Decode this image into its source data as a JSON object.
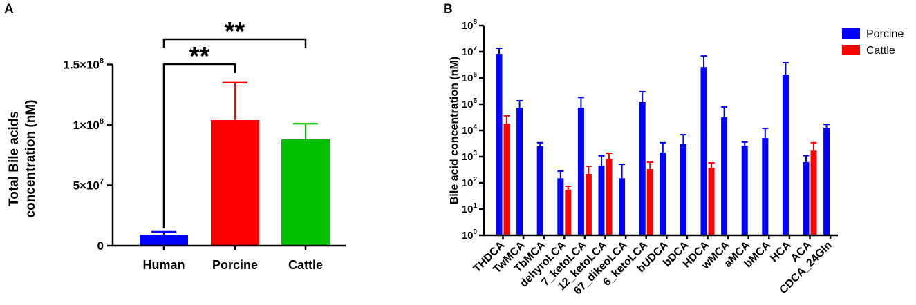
{
  "chart_data": [
    {
      "label": "A",
      "type": "bar",
      "yscale": "linear",
      "categories": [
        "Human",
        "Porcine",
        "Cattle"
      ],
      "values": [
        9000000,
        104000000,
        88000000
      ],
      "error_upper": [
        11500000,
        135000000,
        101000000
      ],
      "colors": [
        "#0000ff",
        "#ff0000",
        "#00c000"
      ],
      "ylabel": [
        "Total Bile acids",
        "concentration (nM)"
      ],
      "ylim": [
        0,
        150000000
      ],
      "yticks": [
        {
          "value": 0,
          "base": "0",
          "exp": ""
        },
        {
          "value": 50000000,
          "base": "5×10",
          "exp": "7"
        },
        {
          "value": 100000000,
          "base": "1×10",
          "exp": "8"
        },
        {
          "value": 150000000,
          "base": "1.5×10",
          "exp": "8"
        }
      ],
      "significance": [
        {
          "from": 0,
          "to": 1,
          "label": "**"
        },
        {
          "from": 0,
          "to": 2,
          "label": "**"
        }
      ]
    },
    {
      "label": "B",
      "type": "bar",
      "yscale": "log",
      "categories": [
        "THDCA",
        "TwMCA",
        "TbMCA",
        "dehyroLCA",
        "7_ketoLCA",
        "12_ketoLCA",
        "67_dikeoLCA",
        "6_ketoLCA",
        "bUDCA",
        "bDCA",
        "HDCA",
        "wMCA",
        "aMCA",
        "bMCA",
        "HCA",
        "ACA",
        "CDCA_24Gln"
      ],
      "series": [
        {
          "name": "Porcine",
          "color": "#0000ff",
          "values": [
            8300000,
            74000,
            2500,
            150,
            74000,
            460,
            150,
            120000,
            1450,
            3000,
            2600000,
            32000,
            2600,
            5100,
            1350000,
            620,
            12700
          ],
          "error_upper": [
            13500000,
            135000,
            3400,
            280,
            180000,
            1070,
            510,
            300000,
            3400,
            6900,
            6900000,
            78000,
            3600,
            12000,
            3800000,
            1100,
            17000
          ]
        },
        {
          "name": "Cattle",
          "color": "#ff0000",
          "values": [
            18000,
            null,
            null,
            55,
            220,
            830,
            null,
            335,
            null,
            null,
            380,
            null,
            null,
            null,
            null,
            1700,
            null
          ],
          "error_upper": [
            36000,
            null,
            null,
            74,
            430,
            1350,
            null,
            615,
            null,
            null,
            580,
            null,
            null,
            null,
            null,
            3400,
            null
          ]
        }
      ],
      "ylabel": "Bile acid concentration (nM)",
      "ylim": [
        1,
        100000000
      ],
      "yticks": [
        {
          "value": 1,
          "base": "10",
          "exp": "0"
        },
        {
          "value": 10,
          "base": "10",
          "exp": "1"
        },
        {
          "value": 100,
          "base": "10",
          "exp": "2"
        },
        {
          "value": 1000,
          "base": "10",
          "exp": "3"
        },
        {
          "value": 10000,
          "base": "10",
          "exp": "4"
        },
        {
          "value": 100000,
          "base": "10",
          "exp": "5"
        },
        {
          "value": 1000000,
          "base": "10",
          "exp": "6"
        },
        {
          "value": 10000000,
          "base": "10",
          "exp": "7"
        },
        {
          "value": 100000000,
          "base": "10",
          "exp": "8"
        }
      ],
      "legend": "top-right"
    }
  ]
}
